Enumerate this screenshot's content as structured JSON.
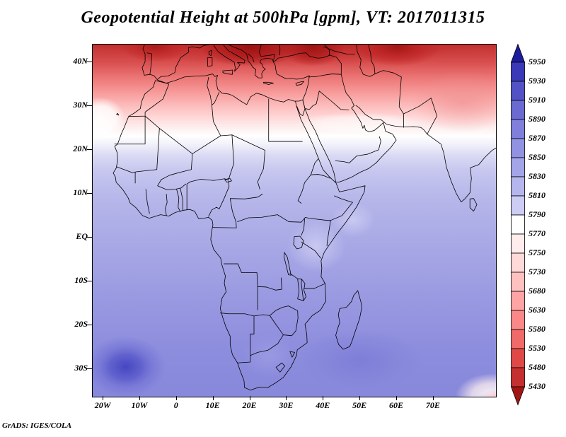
{
  "title": "Geopotential Height at 500hPa [gpm], VT: 2017011315",
  "footer": "GrADS: IGES/COLA",
  "axes": {
    "y_ticks": [
      {
        "label": "40N",
        "lat": 40
      },
      {
        "label": "30N",
        "lat": 30
      },
      {
        "label": "20N",
        "lat": 20
      },
      {
        "label": "10N",
        "lat": 10
      },
      {
        "label": "EQ",
        "lat": 0
      },
      {
        "label": "10S",
        "lat": -10
      },
      {
        "label": "20S",
        "lat": -20
      },
      {
        "label": "30S",
        "lat": -30
      }
    ],
    "x_ticks": [
      {
        "label": "20W",
        "lon": -20
      },
      {
        "label": "10W",
        "lon": -10
      },
      {
        "label": "0",
        "lon": 0
      },
      {
        "label": "10E",
        "lon": 10
      },
      {
        "label": "20E",
        "lon": 20
      },
      {
        "label": "30E",
        "lon": 30
      },
      {
        "label": "40E",
        "lon": 40
      },
      {
        "label": "50E",
        "lon": 50
      },
      {
        "label": "60E",
        "lon": 60
      },
      {
        "label": "70E",
        "lon": 70
      }
    ]
  },
  "colorbar": {
    "boundaries": [
      "5950",
      "5930",
      "5910",
      "5890",
      "5870",
      "5850",
      "5830",
      "5810",
      "5790",
      "5770",
      "5750",
      "5730",
      "5680",
      "5630",
      "5580",
      "5530",
      "5480",
      "5430"
    ],
    "colors_top_to_bottom": [
      "#1c1c9e",
      "#3a3ab8",
      "#5252c6",
      "#6a6ad2",
      "#8080dc",
      "#9292e2",
      "#a4a4e8",
      "#b6b6ee",
      "#ccccf4",
      "#ffffff",
      "#ffecec",
      "#ffd8d8",
      "#ffc0c0",
      "#ffa4a4",
      "#fb8888",
      "#f06a6a",
      "#e04848",
      "#c62f2f",
      "#a31515"
    ]
  },
  "chart_data": {
    "type": "heatmap",
    "subtype": "filled-contour-map",
    "title": "Geopotential Height at 500hPa [gpm], VT: 2017011315",
    "variable": "geopotential height",
    "pressure_level_hPa": 500,
    "units": "gpm",
    "valid_time": "2017011315",
    "source_label": "GrADS: IGES/COLA",
    "lon_range_deg": [
      -23,
      87
    ],
    "lat_range_deg": [
      -36.3,
      44
    ],
    "x_tick_lons": [
      -20,
      -10,
      0,
      10,
      20,
      30,
      40,
      50,
      60,
      70
    ],
    "y_tick_lats": [
      40,
      30,
      20,
      10,
      0,
      -10,
      -20,
      -30
    ],
    "contour_levels_gpm": [
      5430,
      5480,
      5530,
      5580,
      5630,
      5680,
      5730,
      5750,
      5770,
      5790,
      5810,
      5830,
      5850,
      5870,
      5890,
      5910,
      5930,
      5950
    ],
    "palette_high_to_low": [
      "#1c1c9e",
      "#3a3ab8",
      "#5252c6",
      "#6a6ad2",
      "#8080dc",
      "#9292e2",
      "#a4a4e8",
      "#b6b6ee",
      "#ccccf4",
      "#ffffff",
      "#ffecec",
      "#ffd8d8",
      "#ffc0c0",
      "#ffa4a4",
      "#fb8888",
      "#f06a6a",
      "#e04848",
      "#c62f2f",
      "#a31515"
    ],
    "legend_position": "right",
    "grid": false,
    "field_features": [
      {
        "region": "northern edge 38-44N (Europe, Anatolia, Caspian area)",
        "approx_value_gpm": "5430-5600, dark red cores below 5480"
      },
      {
        "region": "North Africa / Middle East 28-36N",
        "approx_value_gpm": "5600-5770 (pink shades)"
      },
      {
        "region": "white transition band ~21-28N across Sahara and Arabia",
        "approx_value_gpm": "5770-5790"
      },
      {
        "region": "Sahel 12-20N",
        "approx_value_gpm": "5790-5830"
      },
      {
        "region": "equatorial Africa 10N-10S",
        "approx_value_gpm": "5830-5870"
      },
      {
        "region": "subtropical southern Africa 15-30S",
        "approx_value_gpm": "5860-5890"
      },
      {
        "region": "South Atlantic high ~28-32S, 20W-5W",
        "approx_value_gpm": "5890-5930 (maximum, dark blue)"
      },
      {
        "region": "far southeast corner ~33-36S, 60-87E",
        "approx_value_gpm": "5700-5790 decreasing (white to pink)"
      }
    ]
  }
}
